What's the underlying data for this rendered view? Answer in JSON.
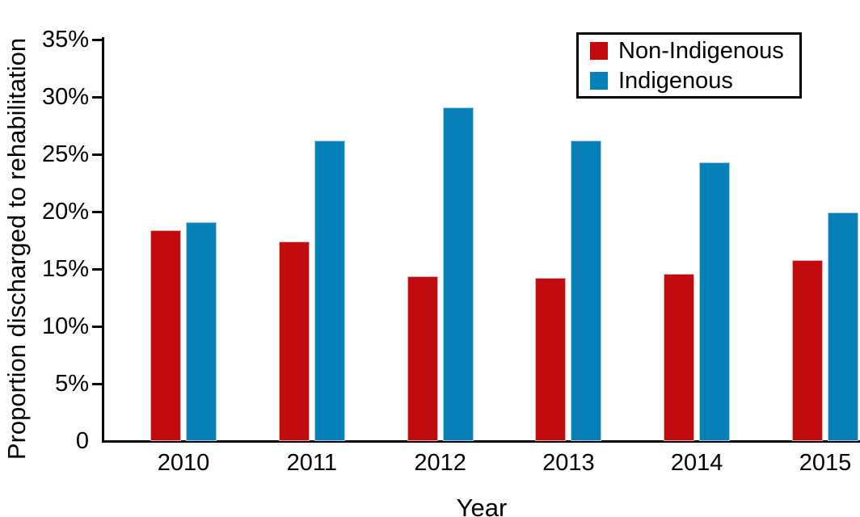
{
  "chart_data": {
    "type": "bar",
    "title": "",
    "xlabel": "Year",
    "ylabel": "Proportion discharged to rehabilitation",
    "categories": [
      "2010",
      "2011",
      "2012",
      "2013",
      "2014",
      "2015"
    ],
    "series": [
      {
        "name": "Non-Indigenous",
        "color": "#c20b0e",
        "edge_color": "#e0b1ae",
        "values": [
          18.4,
          17.4,
          14.4,
          14.2,
          14.6,
          15.8
        ]
      },
      {
        "name": "Indigenous",
        "color": "#0881b8",
        "edge_color": "#a6cde3",
        "values": [
          19.1,
          26.2,
          29.1,
          26.2,
          24.3,
          19.9
        ]
      }
    ],
    "y_ticks": [
      {
        "value": 0,
        "label": "0"
      },
      {
        "value": 5,
        "label": "5%"
      },
      {
        "value": 10,
        "label": "10%"
      },
      {
        "value": 15,
        "label": "15%"
      },
      {
        "value": 20,
        "label": "20%"
      },
      {
        "value": 25,
        "label": "25%"
      },
      {
        "value": 30,
        "label": "30%"
      },
      {
        "value": 35,
        "label": "35%"
      }
    ],
    "ylim": [
      0,
      35
    ],
    "grid": false,
    "legend_position": "upper right",
    "axis_color": "#000000"
  }
}
